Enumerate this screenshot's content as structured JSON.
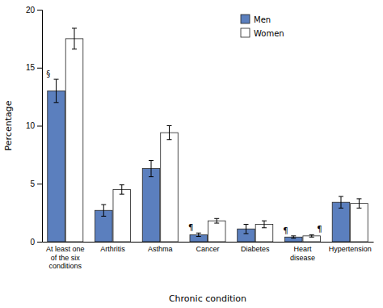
{
  "chart_data": {
    "type": "bar",
    "categories": [
      "At least one\nof the six\nconditions",
      "Arthritis",
      "Asthma",
      "Cancer",
      "Diabetes",
      "Heart\ndisease",
      "Hypertension"
    ],
    "series": [
      {
        "name": "Men",
        "color": "#5b7fbe",
        "values": [
          13.0,
          2.7,
          6.3,
          0.6,
          1.1,
          0.4,
          3.4
        ],
        "errors": [
          1.0,
          0.5,
          0.7,
          0.15,
          0.4,
          0.1,
          0.5
        ]
      },
      {
        "name": "Women",
        "color": "#FFFFFF",
        "values": [
          17.5,
          4.5,
          9.4,
          1.8,
          1.5,
          0.5,
          3.3
        ],
        "errors": [
          0.9,
          0.4,
          0.6,
          0.2,
          0.3,
          0.1,
          0.4
        ]
      }
    ],
    "ylim": [
      0,
      20
    ],
    "yticks": [
      0,
      5,
      10,
      15,
      20
    ],
    "ylabel": "Percentage",
    "xlabel": "Chronic condition",
    "legend": "top",
    "grid": false,
    "annotations": [
      {
        "text": "§",
        "category": "At least one\nof the six\nconditions",
        "series": "Men"
      },
      {
        "text": "¶",
        "category": "Cancer",
        "series": "Men"
      },
      {
        "text": "¶",
        "category": "Heart\ndisease",
        "series": "Men"
      },
      {
        "text": "¶",
        "category": "Heart\ndisease",
        "series": "Women"
      }
    ]
  }
}
